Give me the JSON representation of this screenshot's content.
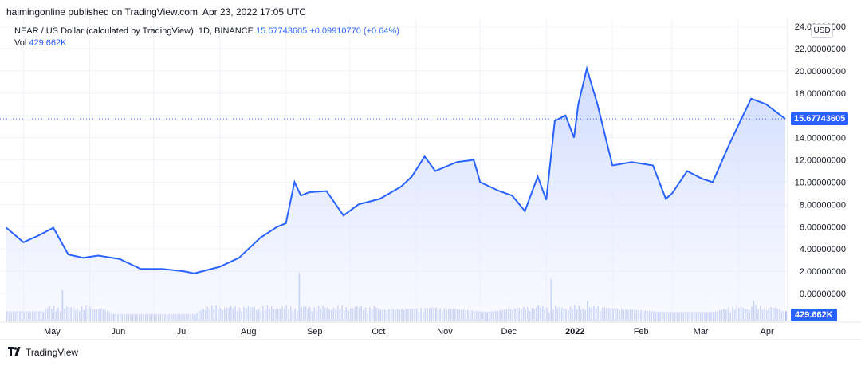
{
  "header": {
    "published": "haimingonline published on TradingView.com, Apr 23, 2022 17:05 UTC"
  },
  "legend": {
    "symbol": "NEAR / US Dollar (calculated by TradingView), 1D, BINANCE",
    "last": "15.67743605",
    "change": "+0.09910770 (+0.64%)",
    "vol_label": "Vol",
    "vol_value": "429.662K"
  },
  "controls": {
    "currency": "USD"
  },
  "badges": {
    "price": "15.67743605",
    "volume": "429.662K"
  },
  "footer": {
    "brand": "TradingView"
  },
  "colors": {
    "line": "#2962ff",
    "area": "#dbe4ff",
    "volume": "#aebcf0",
    "badge": "#2962ff"
  },
  "chart_data": {
    "type": "area",
    "symbol": "NEAR/USD",
    "y_ticks": [
      "24.00000000",
      "22.00000000",
      "20.00000000",
      "18.00000000",
      "16.00000000",
      "14.00000000",
      "12.00000000",
      "10.00000000",
      "8.00000000",
      "6.00000000",
      "4.00000000",
      "2.00000000",
      "0.00000000"
    ],
    "x_ticks": [
      "May",
      "Jun",
      "Jul",
      "Aug",
      "Sep",
      "Oct",
      "Nov",
      "Dec",
      "2022",
      "Feb",
      "Mar",
      "Apr"
    ],
    "ylim": [
      0,
      24
    ],
    "last_price": 15.67743605,
    "price": {
      "x": [
        "2021-04-23",
        "2021-05-01",
        "2021-05-08",
        "2021-05-15",
        "2021-05-22",
        "2021-05-29",
        "2021-06-05",
        "2021-06-15",
        "2021-06-25",
        "2021-07-05",
        "2021-07-15",
        "2021-07-20",
        "2021-08-01",
        "2021-08-10",
        "2021-08-20",
        "2021-08-28",
        "2021-09-01",
        "2021-09-05",
        "2021-09-08",
        "2021-09-12",
        "2021-09-20",
        "2021-09-28",
        "2021-10-05",
        "2021-10-15",
        "2021-10-25",
        "2021-10-30",
        "2021-11-05",
        "2021-11-10",
        "2021-11-20",
        "2021-11-28",
        "2021-12-01",
        "2021-12-10",
        "2021-12-16",
        "2021-12-22",
        "2021-12-28",
        "2022-01-01",
        "2022-01-05",
        "2022-01-10",
        "2022-01-14",
        "2022-01-16",
        "2022-01-20",
        "2022-01-25",
        "2022-02-01",
        "2022-02-10",
        "2022-02-20",
        "2022-02-26",
        "2022-03-01",
        "2022-03-08",
        "2022-03-15",
        "2022-03-20",
        "2022-03-28",
        "2022-04-02",
        "2022-04-07",
        "2022-04-14",
        "2022-04-23"
      ],
      "y": [
        5.9,
        4.6,
        5.2,
        5.9,
        3.5,
        3.2,
        3.4,
        3.1,
        2.2,
        2.2,
        2.0,
        1.8,
        2.4,
        3.2,
        5.0,
        6.0,
        6.3,
        10.0,
        8.8,
        9.1,
        9.2,
        7.0,
        8.0,
        8.5,
        9.6,
        10.5,
        12.3,
        11.0,
        11.8,
        12.0,
        10.0,
        9.2,
        8.8,
        7.4,
        10.5,
        8.4,
        15.5,
        16.0,
        14.0,
        17.0,
        20.2,
        17.0,
        11.5,
        11.8,
        11.5,
        8.5,
        9.0,
        11.0,
        10.3,
        10.0,
        13.5,
        15.5,
        17.5,
        17.0,
        15.68
      ]
    },
    "volume_scale_max": 2.2,
    "volume": {
      "x": [
        "2021-05-10",
        "2021-05-19",
        "2021-06-12",
        "2021-07-20",
        "2021-09-07",
        "2021-10-15",
        "2021-11-10",
        "2021-12-04",
        "2021-12-28",
        "2022-01-03",
        "2022-01-20",
        "2022-01-28",
        "2022-02-24",
        "2022-03-20",
        "2022-04-08",
        "2022-04-23"
      ],
      "y": [
        0.4,
        1.4,
        0.3,
        0.3,
        3.5,
        0.5,
        0.6,
        0.4,
        0.7,
        1.9,
        0.9,
        0.6,
        0.4,
        0.4,
        0.9,
        0.43
      ]
    }
  }
}
